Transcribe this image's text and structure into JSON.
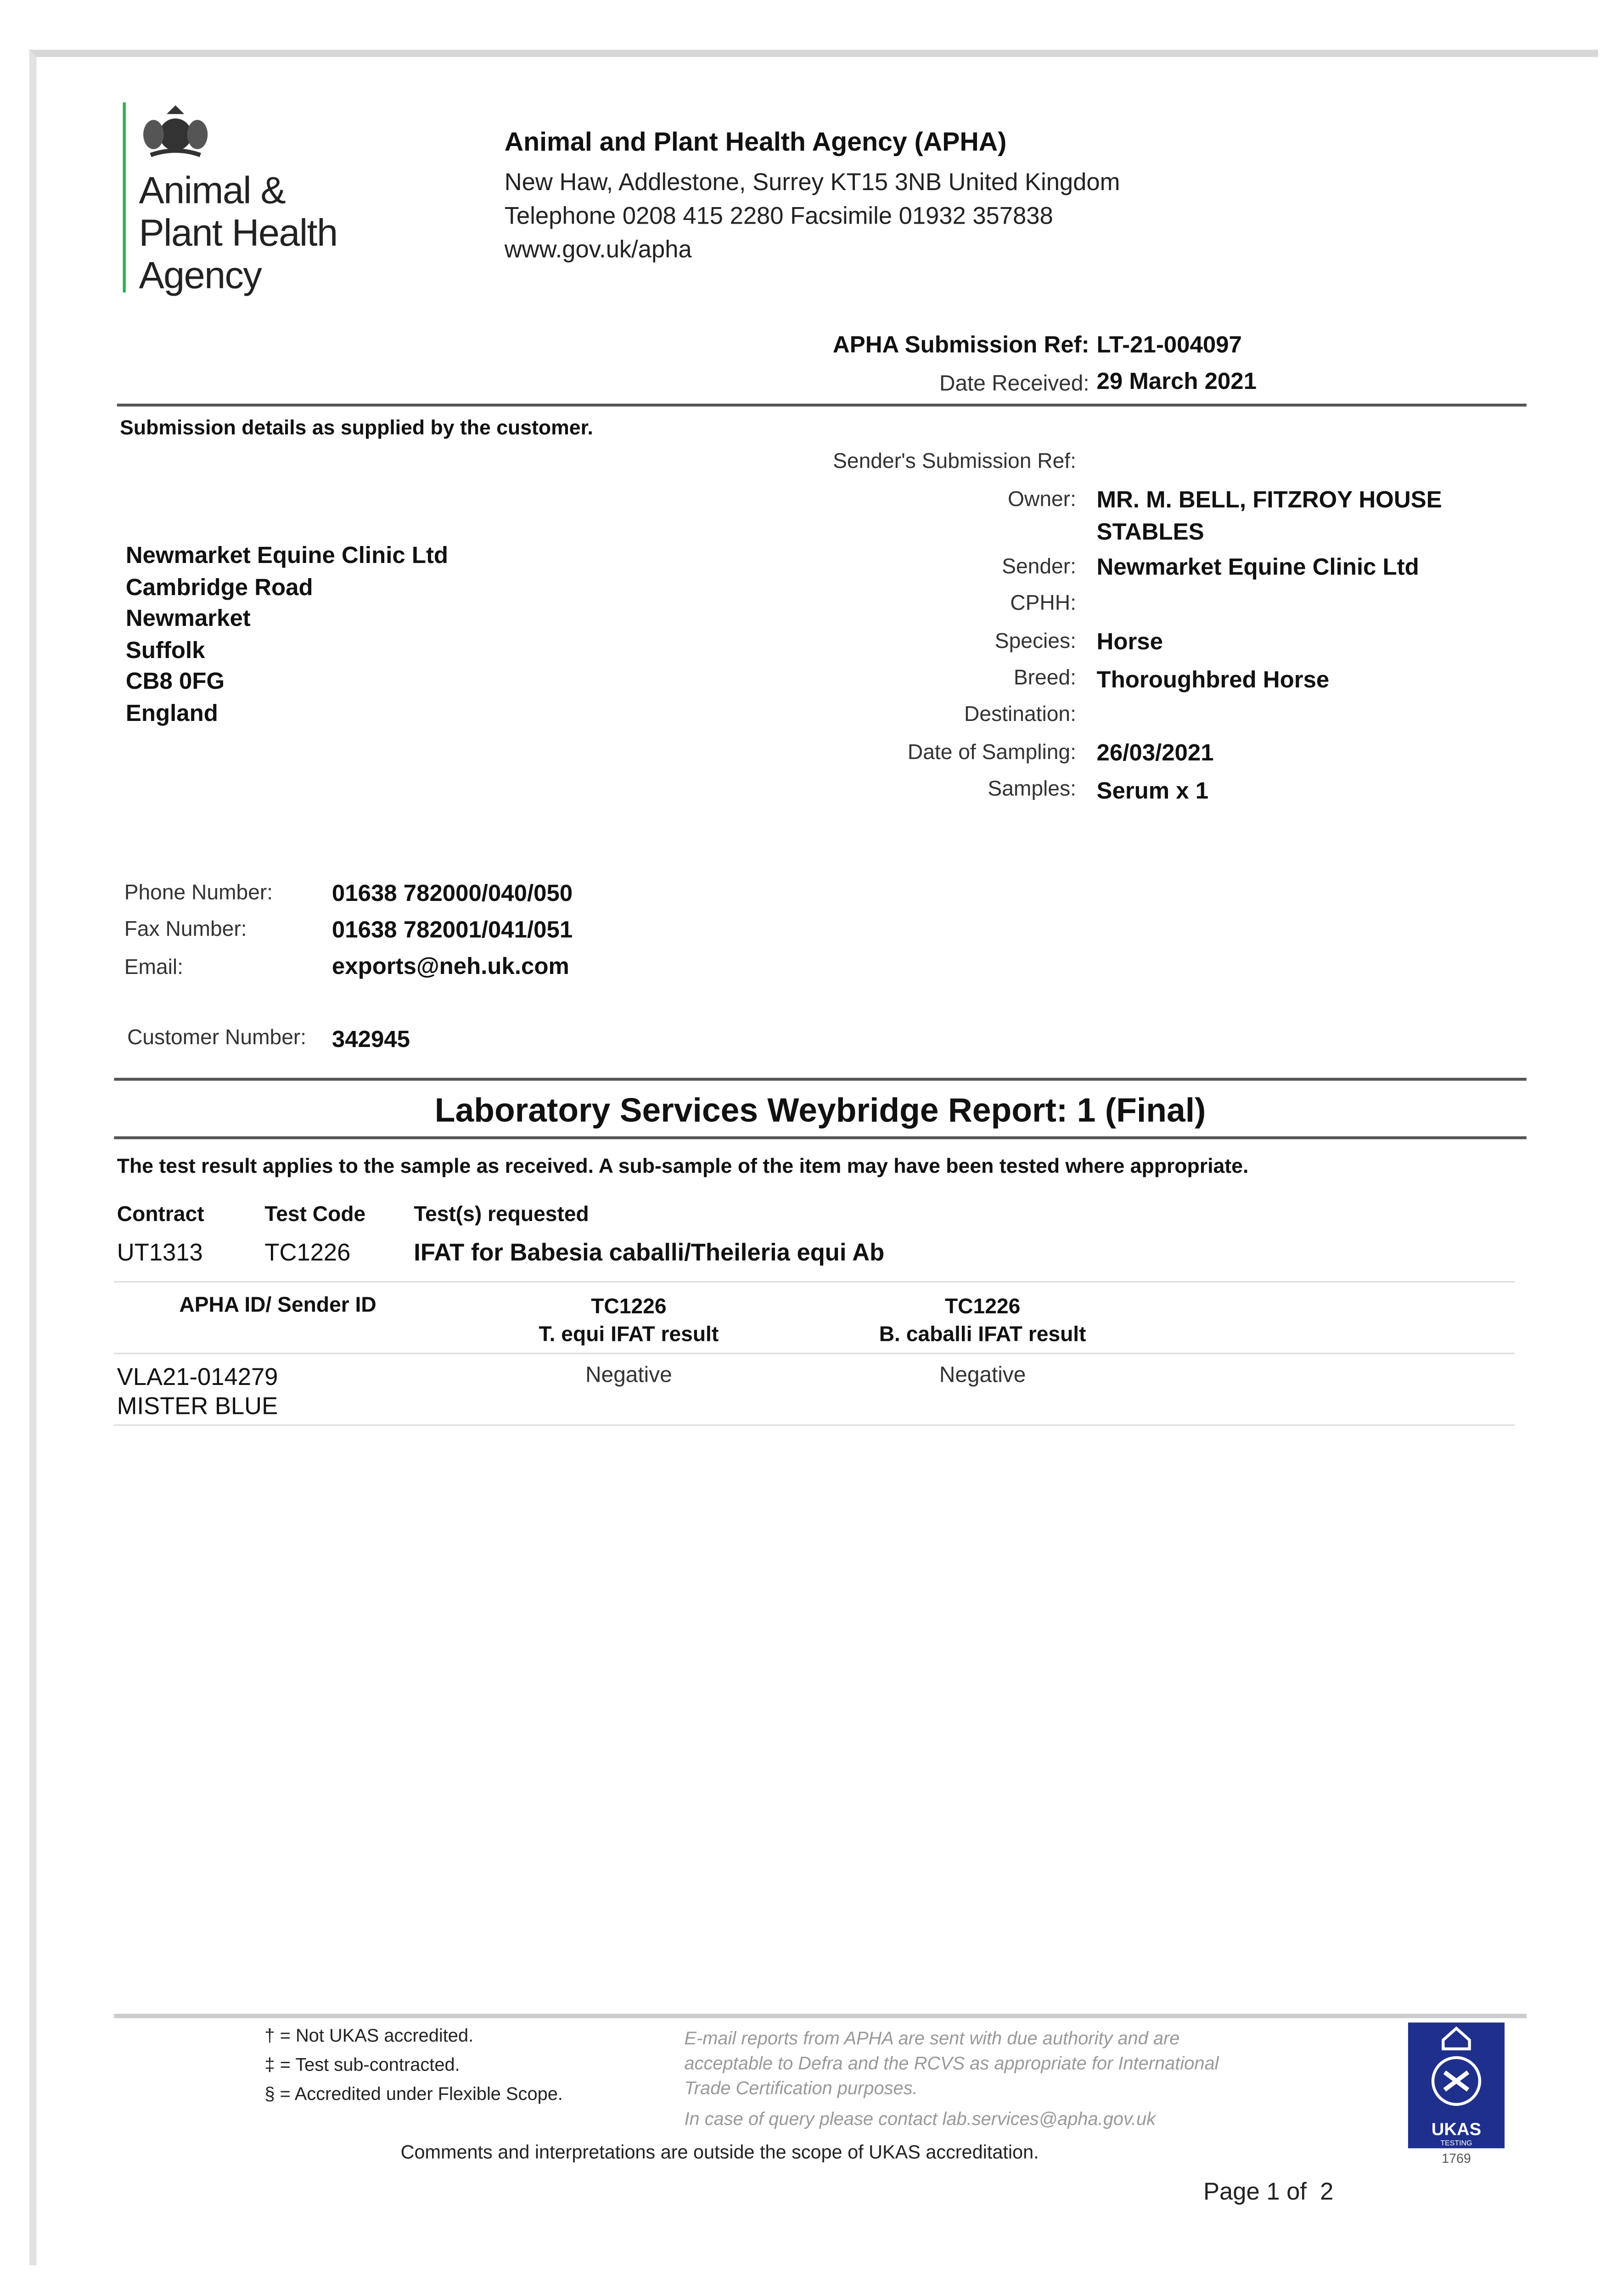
{
  "logo": {
    "line1": "Animal &",
    "line2": "Plant Health",
    "line3": "Agency",
    "accent": "#3aa655"
  },
  "agency": {
    "name": "Animal and Plant Health Agency (APHA)",
    "address": "New Haw, Addlestone, Surrey KT15 3NB United Kingdom",
    "phone": "Telephone 0208 415 2280 Facsimile 01932 357838",
    "web": "www.gov.uk/apha"
  },
  "ref": {
    "submission_label": "APHA Submission Ref:",
    "submission_value": "LT-21-004097",
    "date_label": "Date Received:",
    "date_value": "29 March 2021"
  },
  "submission_note": "Submission details as supplied by the customer.",
  "customer_address": [
    "Newmarket Equine Clinic Ltd",
    "Cambridge Road",
    "Newmarket",
    "Suffolk",
    "CB8 0FG",
    "England"
  ],
  "details": [
    {
      "label": "Sender's Submission Ref:",
      "value": ""
    },
    {
      "label": "Owner:",
      "value": "MR. M. BELL, FITZROY HOUSE",
      "value2": "STABLES"
    },
    {
      "label": "Sender:",
      "value": "Newmarket Equine Clinic Ltd"
    },
    {
      "label": "CPHH:",
      "value": ""
    },
    {
      "label": "Species:",
      "value": "Horse"
    },
    {
      "label": "Breed:",
      "value": "Thoroughbred Horse"
    },
    {
      "label": "Destination:",
      "value": ""
    },
    {
      "label": "Date of Sampling:",
      "value": "26/03/2021"
    },
    {
      "label": "Samples:",
      "value": "Serum x 1"
    }
  ],
  "contact": [
    {
      "label": "Phone Number:",
      "value": "01638 782000/040/050"
    },
    {
      "label": "Fax Number:",
      "value": "01638 782001/041/051"
    },
    {
      "label": "Email:",
      "value": "exports@neh.uk.com"
    }
  ],
  "customer_number": {
    "label": "Customer Number:",
    "value": "342945"
  },
  "report_title": "Laboratory Services Weybridge Report: 1 (Final)",
  "report_note": "The test result applies to the sample as received. A sub-sample of the item may have been tested where appropriate.",
  "contract_table": {
    "headers": [
      "Contract",
      "Test Code",
      "Test(s) requested"
    ],
    "row": [
      "UT1313",
      "TC1226",
      "IFAT for Babesia caballi/Theileria equi Ab"
    ]
  },
  "results_table": {
    "headers": [
      {
        "l1": "APHA ID/ Sender ID",
        "l2": ""
      },
      {
        "l1": "TC1226",
        "l2": "T. equi IFAT result"
      },
      {
        "l1": "TC1226",
        "l2": "B. caballi IFAT result"
      }
    ],
    "rows": [
      {
        "id": "VLA21-014279",
        "sender_id": "MISTER BLUE",
        "t_equi": "Negative",
        "b_caballi": "Negative"
      }
    ]
  },
  "footer": {
    "legend": [
      "† = Not UKAS accredited.",
      "‡ = Test sub-contracted.",
      "§ = Accredited under Flexible Scope."
    ],
    "email_note": [
      "E-mail reports from APHA are sent with due authority and are",
      "acceptable to Defra and the RCVS as appropriate for International",
      "Trade Certification purposes."
    ],
    "query_note": "In case of query please contact lab.services@apha.gov.uk",
    "comments": "Comments and interpretations are outside the scope of UKAS accreditation.",
    "ukas": {
      "text": "UKAS",
      "sub": "TESTING",
      "number": "1769",
      "color": "#1f2f8c"
    },
    "page": "Page 1 of  2"
  }
}
